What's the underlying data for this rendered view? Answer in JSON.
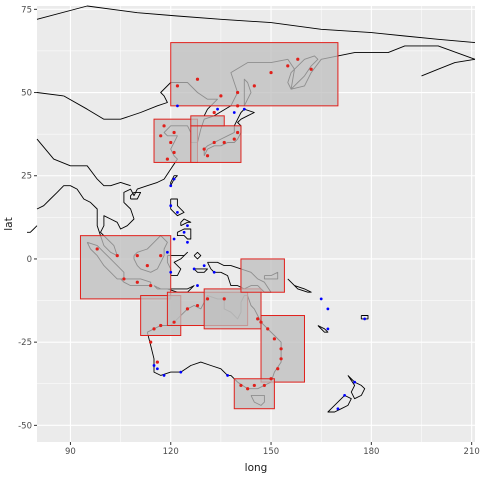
{
  "chart_data": {
    "type": "map",
    "xlabel": "long",
    "ylabel": "lat",
    "xlim": [
      80,
      211
    ],
    "ylim": [
      -55,
      76
    ],
    "x_ticks": [
      90,
      120,
      150,
      180,
      210
    ],
    "y_ticks": [
      75,
      50,
      25,
      0,
      -25,
      -50
    ],
    "x_tick_labels": [
      "90",
      "120",
      "150",
      "180",
      "210"
    ],
    "y_tick_labels": [
      "75",
      "50",
      "25",
      "0",
      "-25",
      "-50"
    ],
    "grid": true,
    "colors": {
      "panel": "#ebebeb",
      "grid": "#ffffff",
      "coastline": "#000000",
      "box_fill": "#bebebe",
      "box_stroke": "#e0201b",
      "red_points": "#e0201b",
      "blue_points": "#0000ff"
    },
    "regions": [
      {
        "lon": [
          120,
          170
        ],
        "lat": [
          46,
          65
        ]
      },
      {
        "lon": [
          115,
          128
        ],
        "lat": [
          29,
          42
        ]
      },
      {
        "lon": [
          126,
          141
        ],
        "lat": [
          29,
          40
        ]
      },
      {
        "lon": [
          126,
          136
        ],
        "lat": [
          40,
          43
        ]
      },
      {
        "lon": [
          93,
          120
        ],
        "lat": [
          -12,
          7
        ]
      },
      {
        "lon": [
          111,
          123
        ],
        "lat": [
          -23,
          -11
        ]
      },
      {
        "lon": [
          119,
          143
        ],
        "lat": [
          -20,
          -10
        ]
      },
      {
        "lon": [
          130,
          147
        ],
        "lat": [
          -21,
          -9
        ]
      },
      {
        "lon": [
          141,
          154
        ],
        "lat": [
          -10,
          0
        ]
      },
      {
        "lon": [
          147,
          160
        ],
        "lat": [
          -37,
          -17
        ]
      },
      {
        "lon": [
          139,
          151
        ],
        "lat": [
          -45,
          -36
        ]
      }
    ],
    "red_points": [
      [
        122,
        52
      ],
      [
        128,
        54
      ],
      [
        135,
        49
      ],
      [
        140,
        50
      ],
      [
        145,
        52
      ],
      [
        150,
        56
      ],
      [
        155,
        58
      ],
      [
        158,
        60
      ],
      [
        162,
        57
      ],
      [
        140,
        46
      ],
      [
        133,
        44
      ],
      [
        118,
        40
      ],
      [
        121,
        38
      ],
      [
        120,
        35
      ],
      [
        121,
        32
      ],
      [
        119,
        30
      ],
      [
        117,
        37
      ],
      [
        130,
        33
      ],
      [
        133,
        35
      ],
      [
        136,
        35
      ],
      [
        139,
        36
      ],
      [
        140,
        38
      ],
      [
        131,
        31
      ],
      [
        104,
        1
      ],
      [
        106,
        -6
      ],
      [
        110,
        -7
      ],
      [
        114,
        -8
      ],
      [
        113,
        -2
      ],
      [
        117,
        1
      ],
      [
        110,
        1
      ],
      [
        98,
        3
      ],
      [
        115,
        -21
      ],
      [
        117,
        -20
      ],
      [
        114,
        -25
      ],
      [
        116,
        -31
      ],
      [
        121,
        -19
      ],
      [
        125,
        -15
      ],
      [
        128,
        -14
      ],
      [
        131,
        -12
      ],
      [
        136,
        -12
      ],
      [
        146,
        -18
      ],
      [
        147,
        -19
      ],
      [
        149,
        -21
      ],
      [
        151,
        -24
      ],
      [
        153,
        -27
      ],
      [
        153,
        -30
      ],
      [
        152,
        -33
      ],
      [
        150,
        -36
      ],
      [
        148,
        -38
      ],
      [
        145,
        -38
      ],
      [
        143,
        -39
      ],
      [
        141,
        -38
      ]
    ],
    "blue_points": [
      [
        121,
        24
      ],
      [
        120,
        22
      ],
      [
        125,
        10
      ],
      [
        124,
        8
      ],
      [
        122,
        14
      ],
      [
        120,
        16
      ],
      [
        121,
        6
      ],
      [
        125,
        5
      ],
      [
        119,
        2
      ],
      [
        120,
        -4
      ],
      [
        127,
        -3
      ],
      [
        130,
        -2
      ],
      [
        128,
        -8
      ],
      [
        133,
        -4
      ],
      [
        122,
        46
      ],
      [
        134,
        45
      ],
      [
        139,
        44
      ],
      [
        142,
        45
      ],
      [
        116,
        -33
      ],
      [
        118,
        -35
      ],
      [
        123,
        -34
      ],
      [
        137,
        -35
      ],
      [
        115,
        -32
      ],
      [
        165,
        -12
      ],
      [
        167,
        -15
      ],
      [
        178,
        -18
      ],
      [
        167,
        -21
      ],
      [
        175,
        -37
      ],
      [
        172,
        -41
      ],
      [
        170,
        -45
      ]
    ]
  }
}
